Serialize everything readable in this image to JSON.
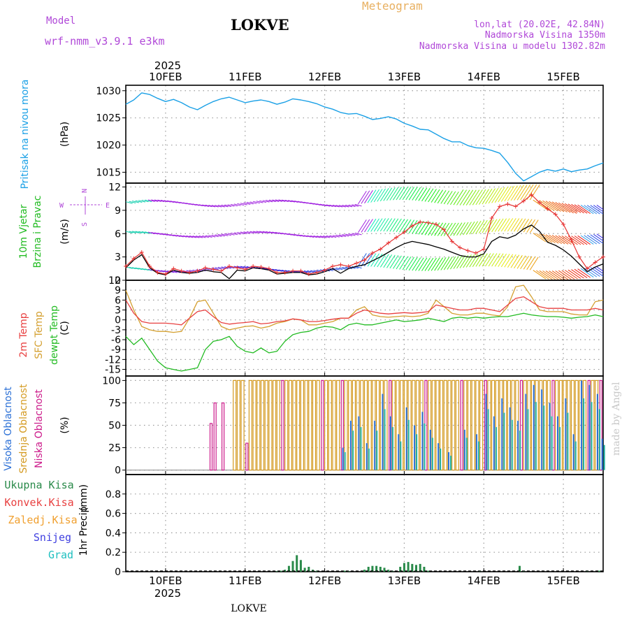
{
  "header": {
    "model_label": "Model",
    "model_name": "wrf-nmm_v3.9.1  e3km",
    "station": "LOKVE",
    "meteogram": "Meteogram",
    "coords": "lon,lat (20.02E, 42.84N)",
    "altitude": "Nadmorska Visina 1350m",
    "model_altitude": "Nadmorska Visina u modelu 1302.82m",
    "footer_station": "LOKVE",
    "watermark": "made by Angel"
  },
  "colors": {
    "pressure": "#1aa0e6",
    "wind_speed": "#e63232",
    "wind_mean": "#000000",
    "temp2m": "#e84040",
    "sfc_temp": "#d4a030",
    "dewpt": "#22bb22",
    "high_cloud": "#2a6fd6",
    "mid_cloud": "#d49a20",
    "low_cloud": "#cc1a8a",
    "precip_total": "#2a8a4a",
    "precip_conv": "#e84040",
    "precip_frozen": "#f0a030",
    "snow": "#4040e0",
    "hail": "#20c0c0",
    "title_purple": "#b048d8",
    "title_orange": "#e8b060"
  },
  "x_axis": {
    "year": "2025",
    "day_labels": [
      "10FEB",
      "11FEB",
      "12FEB",
      "13FEB",
      "14FEB",
      "15FEB"
    ],
    "day_start": 9.5,
    "day_end": 15.5
  },
  "chart_data": [
    {
      "id": "pressure",
      "type": "line",
      "title_lines": [
        "Pritisak na nivou mora"
      ],
      "unit_label": "(hPa)",
      "ylim": [
        1013,
        1031
      ],
      "yticks": [
        1015,
        1020,
        1025,
        1030
      ],
      "x": [
        9.5,
        9.6,
        9.7,
        9.8,
        9.9,
        10.0,
        10.1,
        10.2,
        10.3,
        10.4,
        10.5,
        10.6,
        10.7,
        10.8,
        10.9,
        11.0,
        11.1,
        11.2,
        11.3,
        11.4,
        11.5,
        11.6,
        11.7,
        11.8,
        11.9,
        12.0,
        12.1,
        12.2,
        12.3,
        12.4,
        12.5,
        12.6,
        12.7,
        12.8,
        12.9,
        13.0,
        13.1,
        13.2,
        13.3,
        13.4,
        13.5,
        13.6,
        13.7,
        13.8,
        13.9,
        14.0,
        14.1,
        14.2,
        14.3,
        14.4,
        14.5,
        14.6,
        14.7,
        14.8,
        14.9,
        15.0,
        15.1,
        15.2,
        15.3,
        15.4,
        15.5
      ],
      "values": [
        1027.5,
        1028.3,
        1029.6,
        1029.3,
        1028.6,
        1028.0,
        1028.4,
        1027.8,
        1027.0,
        1026.5,
        1027.3,
        1028.0,
        1028.5,
        1028.8,
        1028.3,
        1027.8,
        1028.1,
        1028.3,
        1028.0,
        1027.5,
        1027.9,
        1028.5,
        1028.3,
        1028.0,
        1027.6,
        1027.0,
        1026.6,
        1026.0,
        1025.7,
        1025.8,
        1025.3,
        1024.7,
        1024.9,
        1025.2,
        1024.8,
        1024.0,
        1023.5,
        1022.9,
        1022.8,
        1022.0,
        1021.2,
        1020.6,
        1020.6,
        1019.9,
        1019.5,
        1019.4,
        1019.0,
        1018.5,
        1016.8,
        1014.8,
        1013.4,
        1014.2,
        1015.0,
        1015.5,
        1015.2,
        1015.6,
        1015.1,
        1015.4,
        1015.6,
        1016.2,
        1016.7
      ]
    },
    {
      "id": "wind",
      "type": "line",
      "title_lines": [
        "10m Vjetar",
        "Brzina i Pravac"
      ],
      "unit_label": "(m/s)",
      "compass": [
        "N",
        "E",
        "S",
        "W"
      ],
      "ylim": [
        0,
        12.5
      ],
      "yticks": [
        0,
        3,
        6,
        9,
        12
      ],
      "x": [
        9.5,
        9.6,
        9.7,
        9.8,
        9.9,
        10.0,
        10.1,
        10.2,
        10.3,
        10.4,
        10.5,
        10.6,
        10.7,
        10.8,
        10.9,
        11.0,
        11.1,
        11.2,
        11.3,
        11.4,
        11.5,
        11.6,
        11.7,
        11.8,
        11.9,
        12.0,
        12.1,
        12.2,
        12.3,
        12.4,
        12.5,
        12.6,
        12.7,
        12.8,
        12.9,
        13.0,
        13.1,
        13.2,
        13.3,
        13.4,
        13.5,
        13.6,
        13.7,
        13.8,
        13.9,
        14.0,
        14.1,
        14.2,
        14.3,
        14.4,
        14.5,
        14.6,
        14.7,
        14.8,
        14.9,
        15.0,
        15.1,
        15.2,
        15.3,
        15.4,
        15.5
      ],
      "gust": [
        1.8,
        2.8,
        3.6,
        1.8,
        1.0,
        0.8,
        1.5,
        1.2,
        1.0,
        1.2,
        1.6,
        1.4,
        1.2,
        1.8,
        1.6,
        1.4,
        1.8,
        1.7,
        1.5,
        1.0,
        1.0,
        1.2,
        1.2,
        0.8,
        1.0,
        1.3,
        1.8,
        2.0,
        1.8,
        2.2,
        2.6,
        3.5,
        4.0,
        4.8,
        5.5,
        6.2,
        7.0,
        7.5,
        7.4,
        7.2,
        6.5,
        5.0,
        4.2,
        3.8,
        3.5,
        4.0,
        8.0,
        9.5,
        9.8,
        9.5,
        10.2,
        11.0,
        10.0,
        9.2,
        8.5,
        7.2,
        5.2,
        3.0,
        1.5,
        2.3,
        3.0
      ],
      "mean": [
        1.6,
        2.6,
        3.3,
        1.6,
        0.9,
        0.7,
        1.3,
        1.0,
        0.9,
        1.0,
        1.3,
        1.1,
        1.0,
        0.2,
        1.3,
        1.2,
        1.6,
        1.5,
        1.3,
        0.8,
        0.9,
        1.0,
        1.0,
        0.7,
        0.8,
        1.1,
        1.5,
        0.9,
        1.5,
        1.8,
        2.0,
        2.5,
        3.0,
        3.6,
        4.2,
        4.7,
        5.0,
        4.8,
        4.6,
        4.3,
        4.0,
        3.6,
        3.2,
        3.0,
        3.0,
        3.4,
        5.0,
        5.6,
        5.4,
        5.8,
        6.6,
        7.1,
        6.3,
        4.9,
        4.5,
        3.9,
        3.1,
        2.1,
        1.1,
        1.7,
        2.1
      ]
    },
    {
      "id": "temperature",
      "type": "line",
      "title_lines": [
        "2m Temp",
        "SFC Temp",
        "dewpt Temp"
      ],
      "unit_label": "(C)",
      "ylim": [
        -17,
        12
      ],
      "yticks": [
        -15,
        -12,
        -9,
        -6,
        -3,
        0,
        3,
        6,
        9,
        12
      ],
      "x": [
        9.5,
        9.6,
        9.7,
        9.8,
        9.9,
        10.0,
        10.1,
        10.2,
        10.3,
        10.4,
        10.5,
        10.6,
        10.7,
        10.8,
        10.9,
        11.0,
        11.1,
        11.2,
        11.3,
        11.4,
        11.5,
        11.6,
        11.7,
        11.8,
        11.9,
        12.0,
        12.1,
        12.2,
        12.3,
        12.4,
        12.5,
        12.6,
        12.7,
        12.8,
        12.9,
        13.0,
        13.1,
        13.2,
        13.3,
        13.4,
        13.5,
        13.6,
        13.7,
        13.8,
        13.9,
        14.0,
        14.1,
        14.2,
        14.3,
        14.4,
        14.5,
        14.6,
        14.7,
        14.8,
        14.9,
        15.0,
        15.1,
        15.2,
        15.3,
        15.4,
        15.5
      ],
      "t2m": [
        6.0,
        2.0,
        -0.5,
        -1.0,
        -1.0,
        -1.0,
        -1.2,
        -1.5,
        0.5,
        2.5,
        3.0,
        1.0,
        -0.8,
        -1.3,
        -1.0,
        -0.8,
        -0.5,
        -1.2,
        -1.0,
        -0.5,
        -0.3,
        0.3,
        0.0,
        -0.5,
        -0.5,
        -0.2,
        0.2,
        0.5,
        0.5,
        2.0,
        3.0,
        2.5,
        2.0,
        1.8,
        2.0,
        2.2,
        2.0,
        2.2,
        2.5,
        4.5,
        4.0,
        3.5,
        3.0,
        3.0,
        3.5,
        3.5,
        3.0,
        2.5,
        4.5,
        6.5,
        7.0,
        5.5,
        4.0,
        3.5,
        3.5,
        3.5,
        3.0,
        3.0,
        3.0,
        3.5,
        3.0
      ],
      "sfc": [
        9.0,
        3.0,
        -2.0,
        -3.0,
        -3.5,
        -3.5,
        -3.8,
        -3.5,
        0.5,
        5.5,
        6.0,
        2.0,
        -2.0,
        -3.0,
        -2.5,
        -2.0,
        -1.8,
        -2.5,
        -2.0,
        -1.0,
        -0.5,
        0.3,
        0.0,
        -1.5,
        -1.5,
        -1.0,
        -0.5,
        0.5,
        0.5,
        3.0,
        4.0,
        1.5,
        1.0,
        0.8,
        1.0,
        1.2,
        1.0,
        1.2,
        2.0,
        6.0,
        4.0,
        2.0,
        1.5,
        1.5,
        2.0,
        2.0,
        1.5,
        1.2,
        4.0,
        10.0,
        10.5,
        7.0,
        3.0,
        2.5,
        2.5,
        2.5,
        1.8,
        1.5,
        1.5,
        5.5,
        6.0
      ],
      "dewpt": [
        -5.0,
        -7.5,
        -5.5,
        -9.0,
        -12.5,
        -14.5,
        -15.0,
        -15.5,
        -15.0,
        -14.5,
        -9.0,
        -6.5,
        -6.0,
        -5.0,
        -8.0,
        -9.5,
        -10.0,
        -8.5,
        -10.0,
        -9.5,
        -6.5,
        -4.5,
        -3.8,
        -3.5,
        -2.5,
        -2.0,
        -2.2,
        -3.0,
        -1.5,
        -1.0,
        -1.5,
        -1.5,
        -1.0,
        -0.5,
        0.0,
        -0.5,
        -0.3,
        0.0,
        0.5,
        0.0,
        -0.5,
        0.5,
        0.8,
        0.5,
        0.8,
        0.5,
        0.8,
        1.0,
        1.0,
        1.5,
        2.0,
        1.5,
        1.2,
        1.0,
        1.0,
        0.8,
        0.5,
        0.8,
        1.0,
        1.5,
        1.0
      ]
    },
    {
      "id": "clouds",
      "type": "bar",
      "title_lines": [
        "Visoka Oblacnost",
        "Srednja Oblacnost",
        "Niska Oblacnost"
      ],
      "unit_label": "(%)",
      "ylim": [
        -5,
        105
      ],
      "yticks": [
        0,
        25,
        50,
        75,
        100
      ],
      "low": [
        [
          10.55,
          52
        ],
        [
          10.6,
          75
        ],
        [
          10.7,
          75
        ],
        [
          11.0,
          30
        ],
        [
          11.45,
          100
        ],
        [
          11.95,
          100
        ],
        [
          12.2,
          100
        ],
        [
          12.8,
          100
        ],
        [
          13.25,
          100
        ],
        [
          13.7,
          100
        ],
        [
          14.0,
          100
        ],
        [
          14.45,
          100
        ],
        [
          14.85,
          100
        ],
        [
          15.3,
          100
        ],
        [
          15.45,
          100
        ]
      ],
      "mid": [
        [
          10.85,
          100
        ],
        [
          10.9,
          100
        ],
        [
          10.95,
          100
        ],
        [
          11.05,
          100
        ],
        [
          11.1,
          100
        ],
        [
          11.15,
          100
        ],
        [
          11.2,
          100
        ],
        [
          11.25,
          100
        ],
        [
          11.3,
          100
        ],
        [
          11.35,
          100
        ],
        [
          11.4,
          100
        ],
        [
          11.5,
          100
        ],
        [
          11.55,
          100
        ],
        [
          11.6,
          100
        ],
        [
          11.65,
          100
        ],
        [
          11.7,
          100
        ],
        [
          11.75,
          100
        ],
        [
          11.8,
          100
        ],
        [
          11.85,
          100
        ],
        [
          11.9,
          100
        ],
        [
          12.0,
          100
        ],
        [
          12.05,
          100
        ],
        [
          12.1,
          100
        ],
        [
          12.15,
          100
        ],
        [
          12.25,
          100
        ],
        [
          12.3,
          100
        ],
        [
          12.35,
          100
        ],
        [
          12.4,
          100
        ],
        [
          12.45,
          100
        ],
        [
          12.5,
          100
        ],
        [
          12.55,
          100
        ],
        [
          12.6,
          100
        ],
        [
          12.65,
          100
        ],
        [
          12.7,
          100
        ],
        [
          12.75,
          100
        ],
        [
          12.85,
          100
        ],
        [
          12.9,
          100
        ],
        [
          12.95,
          100
        ],
        [
          13.0,
          100
        ],
        [
          13.05,
          100
        ],
        [
          13.1,
          100
        ],
        [
          13.15,
          100
        ],
        [
          13.2,
          100
        ],
        [
          13.3,
          100
        ],
        [
          13.35,
          100
        ],
        [
          13.4,
          100
        ],
        [
          13.45,
          100
        ],
        [
          13.5,
          100
        ],
        [
          13.55,
          100
        ],
        [
          13.6,
          100
        ],
        [
          13.65,
          100
        ],
        [
          13.75,
          100
        ],
        [
          13.8,
          100
        ],
        [
          13.85,
          100
        ],
        [
          13.9,
          100
        ],
        [
          13.95,
          100
        ],
        [
          14.05,
          100
        ],
        [
          14.1,
          100
        ],
        [
          14.15,
          100
        ],
        [
          14.2,
          100
        ],
        [
          14.25,
          100
        ],
        [
          14.3,
          100
        ],
        [
          14.35,
          100
        ],
        [
          14.4,
          100
        ],
        [
          14.5,
          100
        ],
        [
          14.55,
          100
        ],
        [
          14.6,
          100
        ],
        [
          14.65,
          100
        ],
        [
          14.7,
          100
        ],
        [
          14.75,
          100
        ],
        [
          14.8,
          100
        ],
        [
          14.9,
          100
        ],
        [
          14.95,
          100
        ],
        [
          15.0,
          100
        ],
        [
          15.05,
          100
        ],
        [
          15.1,
          100
        ],
        [
          15.15,
          100
        ],
        [
          15.2,
          100
        ],
        [
          15.25,
          100
        ],
        [
          15.35,
          100
        ],
        [
          15.4,
          100
        ]
      ],
      "high": [
        [
          12.22,
          25
        ],
        [
          12.32,
          55
        ],
        [
          12.42,
          60
        ],
        [
          12.52,
          30
        ],
        [
          12.62,
          55
        ],
        [
          12.72,
          85
        ],
        [
          12.82,
          60
        ],
        [
          12.92,
          40
        ],
        [
          13.02,
          70
        ],
        [
          13.12,
          50
        ],
        [
          13.22,
          65
        ],
        [
          13.32,
          45
        ],
        [
          13.42,
          30
        ],
        [
          13.55,
          20
        ],
        [
          13.75,
          45
        ],
        [
          13.9,
          40
        ],
        [
          14.02,
          85
        ],
        [
          14.12,
          60
        ],
        [
          14.22,
          80
        ],
        [
          14.32,
          70
        ],
        [
          14.42,
          55
        ],
        [
          14.52,
          85
        ],
        [
          14.62,
          95
        ],
        [
          14.72,
          90
        ],
        [
          14.82,
          75
        ],
        [
          14.92,
          60
        ],
        [
          15.02,
          80
        ],
        [
          15.12,
          40
        ],
        [
          15.22,
          100
        ],
        [
          15.32,
          95
        ],
        [
          15.42,
          85
        ],
        [
          15.48,
          35
        ]
      ]
    },
    {
      "id": "precip",
      "type": "bar",
      "title_lines": [
        "1hr Precip"
      ],
      "unit_label": "(mm)",
      "legend": [
        "Ukupna  Kisa",
        "Konvek.Kisa",
        "Zaledj.Kisa",
        "Snijeg",
        "Grad"
      ],
      "ylim": [
        0,
        1.0
      ],
      "yticks": [
        0,
        0.2,
        0.4,
        0.6,
        0.8
      ],
      "total": [
        [
          11.4,
          0.005
        ],
        [
          11.45,
          0.01
        ],
        [
          11.5,
          0.02
        ],
        [
          11.55,
          0.06
        ],
        [
          11.6,
          0.11
        ],
        [
          11.65,
          0.17
        ],
        [
          11.7,
          0.12
        ],
        [
          11.75,
          0.04
        ],
        [
          11.8,
          0.05
        ],
        [
          11.85,
          0.02
        ],
        [
          11.9,
          0.01
        ],
        [
          12.25,
          0.01
        ],
        [
          12.3,
          0.005
        ],
        [
          12.5,
          0.02
        ],
        [
          12.55,
          0.05
        ],
        [
          12.6,
          0.06
        ],
        [
          12.65,
          0.06
        ],
        [
          12.7,
          0.05
        ],
        [
          12.75,
          0.04
        ],
        [
          12.8,
          0.02
        ],
        [
          12.85,
          0.01
        ],
        [
          12.95,
          0.05
        ],
        [
          13.0,
          0.09
        ],
        [
          13.05,
          0.1
        ],
        [
          13.1,
          0.08
        ],
        [
          13.15,
          0.07
        ],
        [
          13.2,
          0.08
        ],
        [
          13.25,
          0.05
        ],
        [
          13.3,
          0.01
        ],
        [
          13.95,
          0.01
        ],
        [
          14.45,
          0.06
        ],
        [
          14.5,
          0.01
        ],
        [
          15.3,
          0.005
        ],
        [
          15.45,
          0.01
        ]
      ]
    }
  ]
}
